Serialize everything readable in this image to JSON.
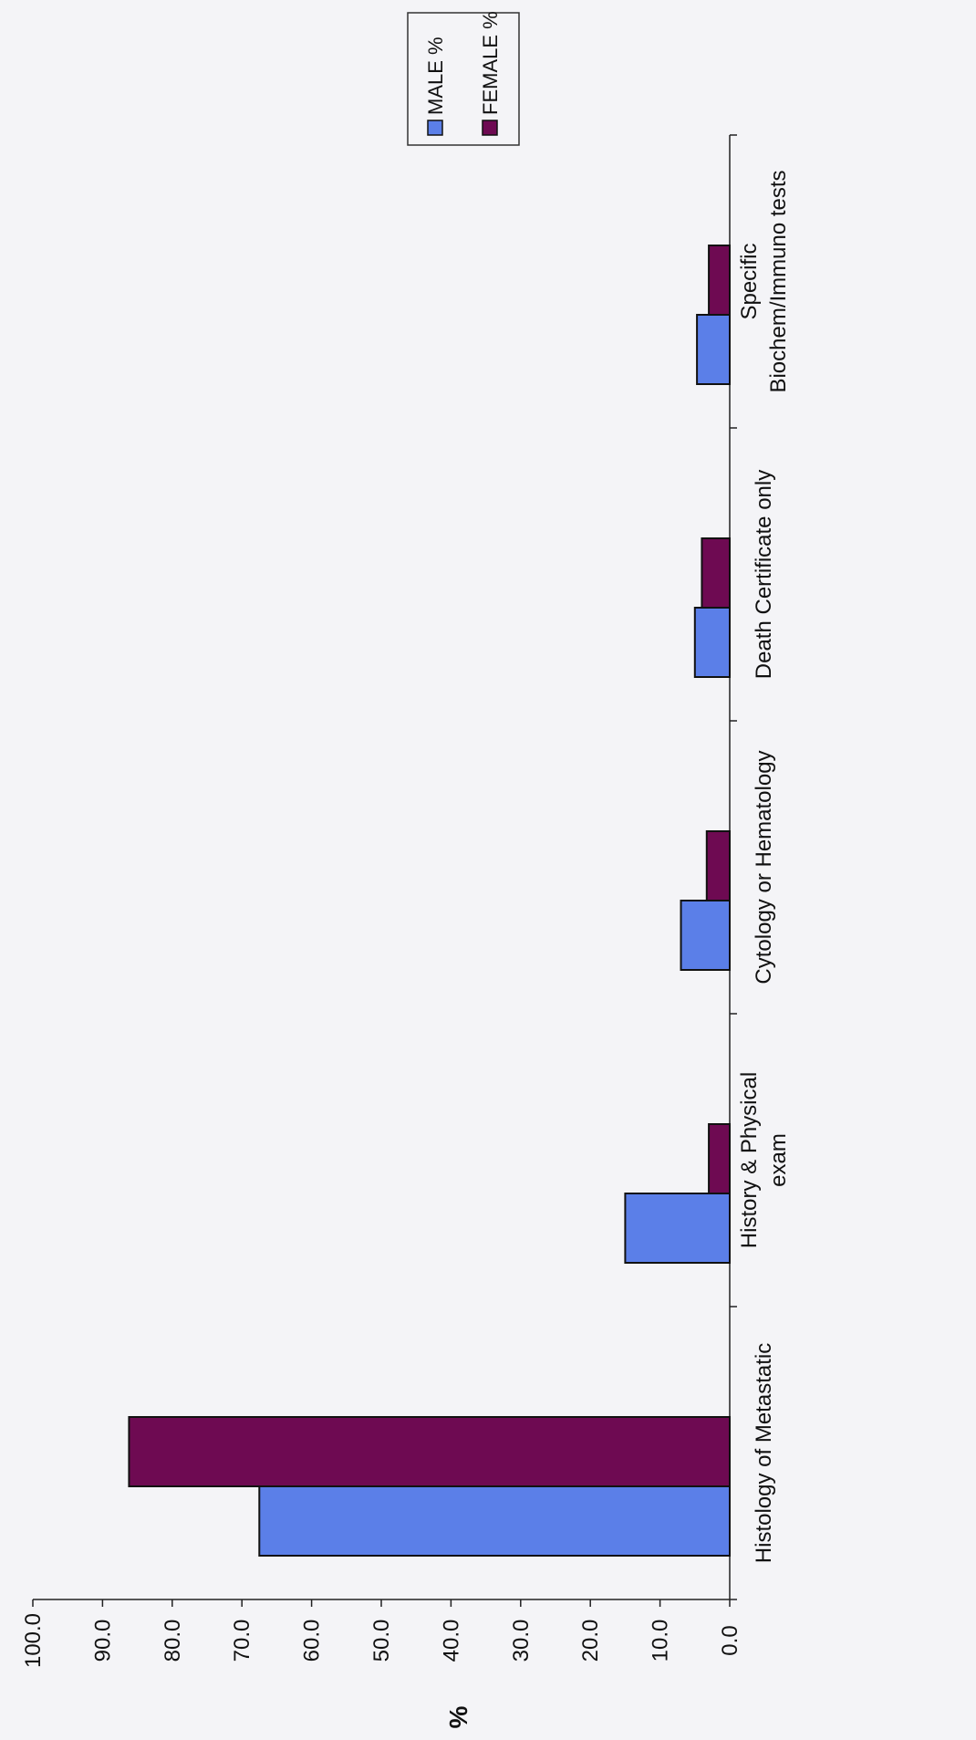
{
  "chart_data": {
    "type": "bar",
    "orientation": "rotated 90 degrees counter-clockwise",
    "categories": [
      [
        "Histology of Metastatic"
      ],
      [
        "History & Physical",
        "exam"
      ],
      [
        "Cytology or Hematology"
      ],
      [
        "Death Certificate only"
      ],
      [
        "Specific",
        "Biochem/Immuno tests"
      ]
    ],
    "series": [
      {
        "name": "MALE %",
        "color": "#5b7fe8",
        "values": [
          67.5,
          15.0,
          7.0,
          5.0,
          4.7
        ]
      },
      {
        "name": "FEMALE %",
        "color": "#6e0a52",
        "values": [
          86.2,
          3.0,
          3.3,
          4.0,
          3.0
        ]
      }
    ],
    "ylabel": "%",
    "ylim": [
      0,
      100
    ],
    "yticks": [
      "0.0",
      "10.0",
      "20.0",
      "30.0",
      "40.0",
      "50.0",
      "60.0",
      "70.0",
      "80.0",
      "90.0",
      "100.0"
    ],
    "grid": false,
    "legend_position": "top-right"
  }
}
